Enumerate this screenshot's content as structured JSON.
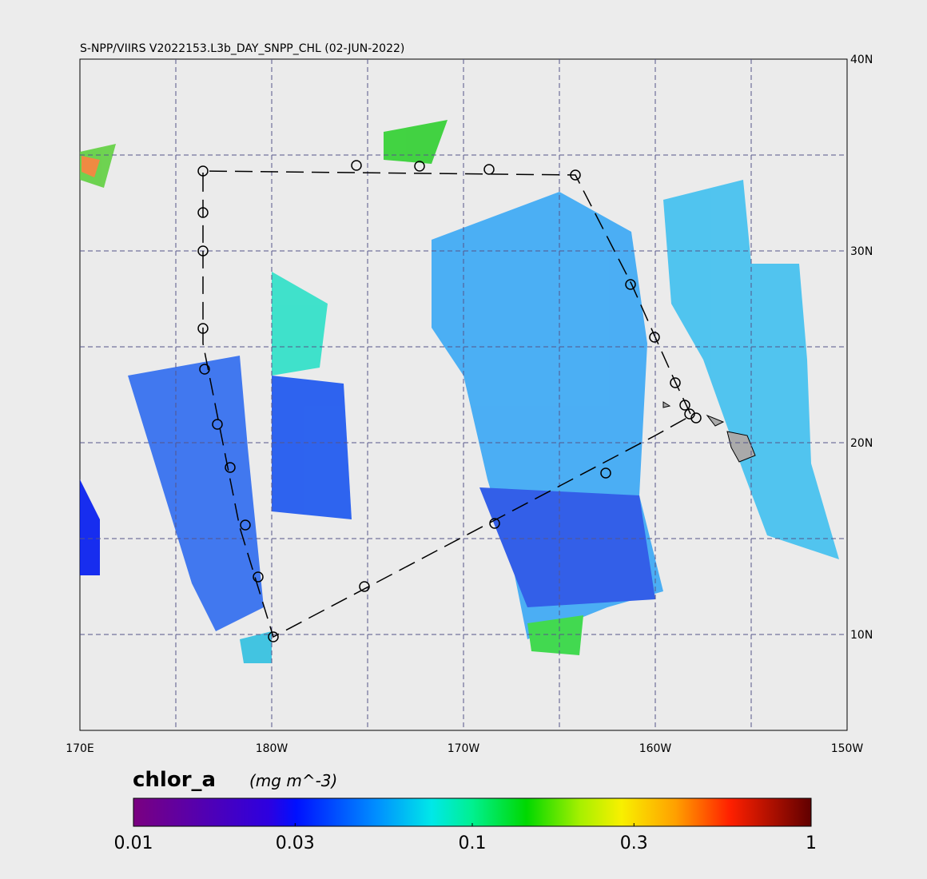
{
  "title": "S-NPP/VIIRS V2022153.L3b_DAY_SNPP_CHL (02-JUN-2022)",
  "lon_labels": [
    "170E",
    "180W",
    "170W",
    "160W",
    "150W"
  ],
  "lat_labels": [
    "40N",
    "30N",
    "20N",
    "10N"
  ],
  "colorbar": {
    "variable": "chlor_a",
    "units": "(mg m^-3)",
    "ticks": [
      0.01,
      0.03,
      0.1,
      0.3,
      1
    ]
  }
}
